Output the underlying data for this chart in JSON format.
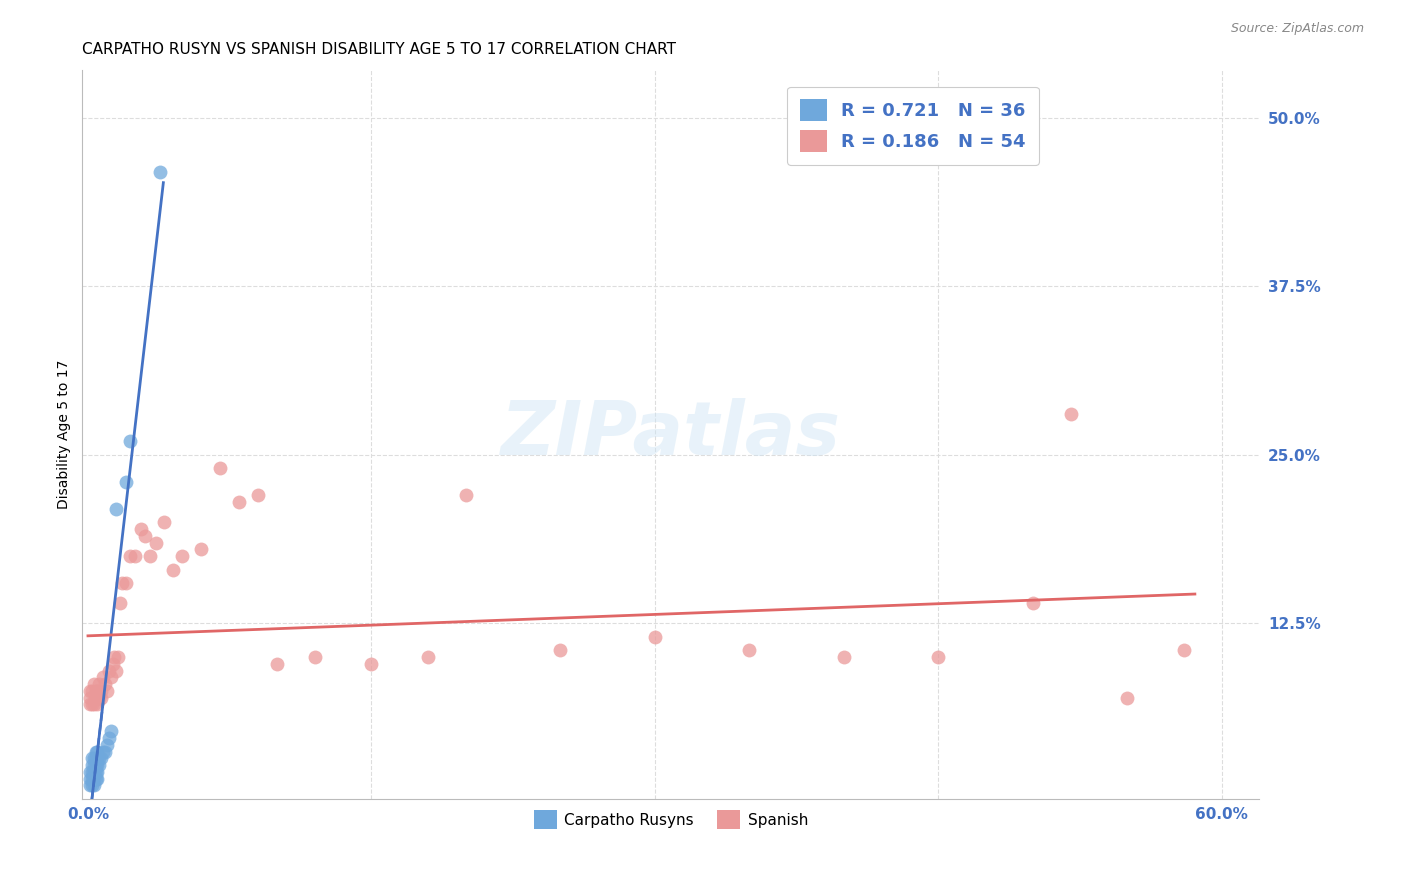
{
  "title": "CARPATHO RUSYN VS SPANISH DISABILITY AGE 5 TO 17 CORRELATION CHART",
  "source": "Source: ZipAtlas.com",
  "ylabel_label": "Disability Age 5 to 17",
  "carpatho_color": "#6fa8dc",
  "spanish_color": "#ea9999",
  "trendline_carpatho_color": "#4472c4",
  "trendline_spanish_color": "#e06666",
  "xlim": [
    -0.003,
    0.62
  ],
  "ylim": [
    -0.005,
    0.535
  ],
  "xticks": [
    0.0,
    0.6
  ],
  "xticklabels": [
    "0.0%",
    "60.0%"
  ],
  "yticks": [
    0.0,
    0.125,
    0.25,
    0.375,
    0.5
  ],
  "yticklabels": [
    "",
    "12.5%",
    "25.0%",
    "37.5%",
    "50.0%"
  ],
  "grid_yticks": [
    0.125,
    0.25,
    0.375,
    0.5
  ],
  "grid_xticks": [
    0.15,
    0.3,
    0.45,
    0.6
  ],
  "background_color": "#ffffff",
  "grid_color": "#dddddd",
  "title_fontsize": 11,
  "axis_label_fontsize": 10,
  "tick_fontsize": 11,
  "legend_fontsize": 13,
  "carpatho_x": [
    0.001,
    0.001,
    0.001,
    0.002,
    0.002,
    0.002,
    0.002,
    0.002,
    0.003,
    0.003,
    0.003,
    0.003,
    0.003,
    0.003,
    0.004,
    0.004,
    0.004,
    0.004,
    0.004,
    0.005,
    0.005,
    0.005,
    0.005,
    0.005,
    0.006,
    0.006,
    0.007,
    0.008,
    0.009,
    0.01,
    0.011,
    0.012,
    0.015,
    0.02,
    0.022,
    0.038
  ],
  "carpatho_y": [
    0.005,
    0.01,
    0.015,
    0.005,
    0.01,
    0.015,
    0.02,
    0.025,
    0.005,
    0.01,
    0.015,
    0.015,
    0.02,
    0.025,
    0.01,
    0.015,
    0.02,
    0.025,
    0.03,
    0.01,
    0.015,
    0.02,
    0.025,
    0.03,
    0.02,
    0.025,
    0.025,
    0.03,
    0.03,
    0.035,
    0.04,
    0.045,
    0.21,
    0.23,
    0.26,
    0.46
  ],
  "spanish_x": [
    0.001,
    0.001,
    0.001,
    0.002,
    0.002,
    0.003,
    0.003,
    0.004,
    0.004,
    0.005,
    0.005,
    0.006,
    0.006,
    0.007,
    0.007,
    0.008,
    0.009,
    0.01,
    0.011,
    0.012,
    0.013,
    0.014,
    0.015,
    0.016,
    0.017,
    0.018,
    0.02,
    0.022,
    0.025,
    0.028,
    0.03,
    0.033,
    0.036,
    0.04,
    0.045,
    0.05,
    0.06,
    0.07,
    0.08,
    0.09,
    0.1,
    0.12,
    0.15,
    0.18,
    0.2,
    0.25,
    0.3,
    0.35,
    0.4,
    0.45,
    0.5,
    0.52,
    0.55,
    0.58
  ],
  "spanish_y": [
    0.065,
    0.07,
    0.075,
    0.065,
    0.075,
    0.065,
    0.08,
    0.07,
    0.075,
    0.065,
    0.075,
    0.07,
    0.08,
    0.07,
    0.075,
    0.085,
    0.08,
    0.075,
    0.09,
    0.085,
    0.095,
    0.1,
    0.09,
    0.1,
    0.14,
    0.155,
    0.155,
    0.175,
    0.175,
    0.195,
    0.19,
    0.175,
    0.185,
    0.2,
    0.165,
    0.175,
    0.18,
    0.24,
    0.215,
    0.22,
    0.095,
    0.1,
    0.095,
    0.1,
    0.22,
    0.105,
    0.115,
    0.105,
    0.1,
    0.1,
    0.14,
    0.28,
    0.07,
    0.105
  ]
}
